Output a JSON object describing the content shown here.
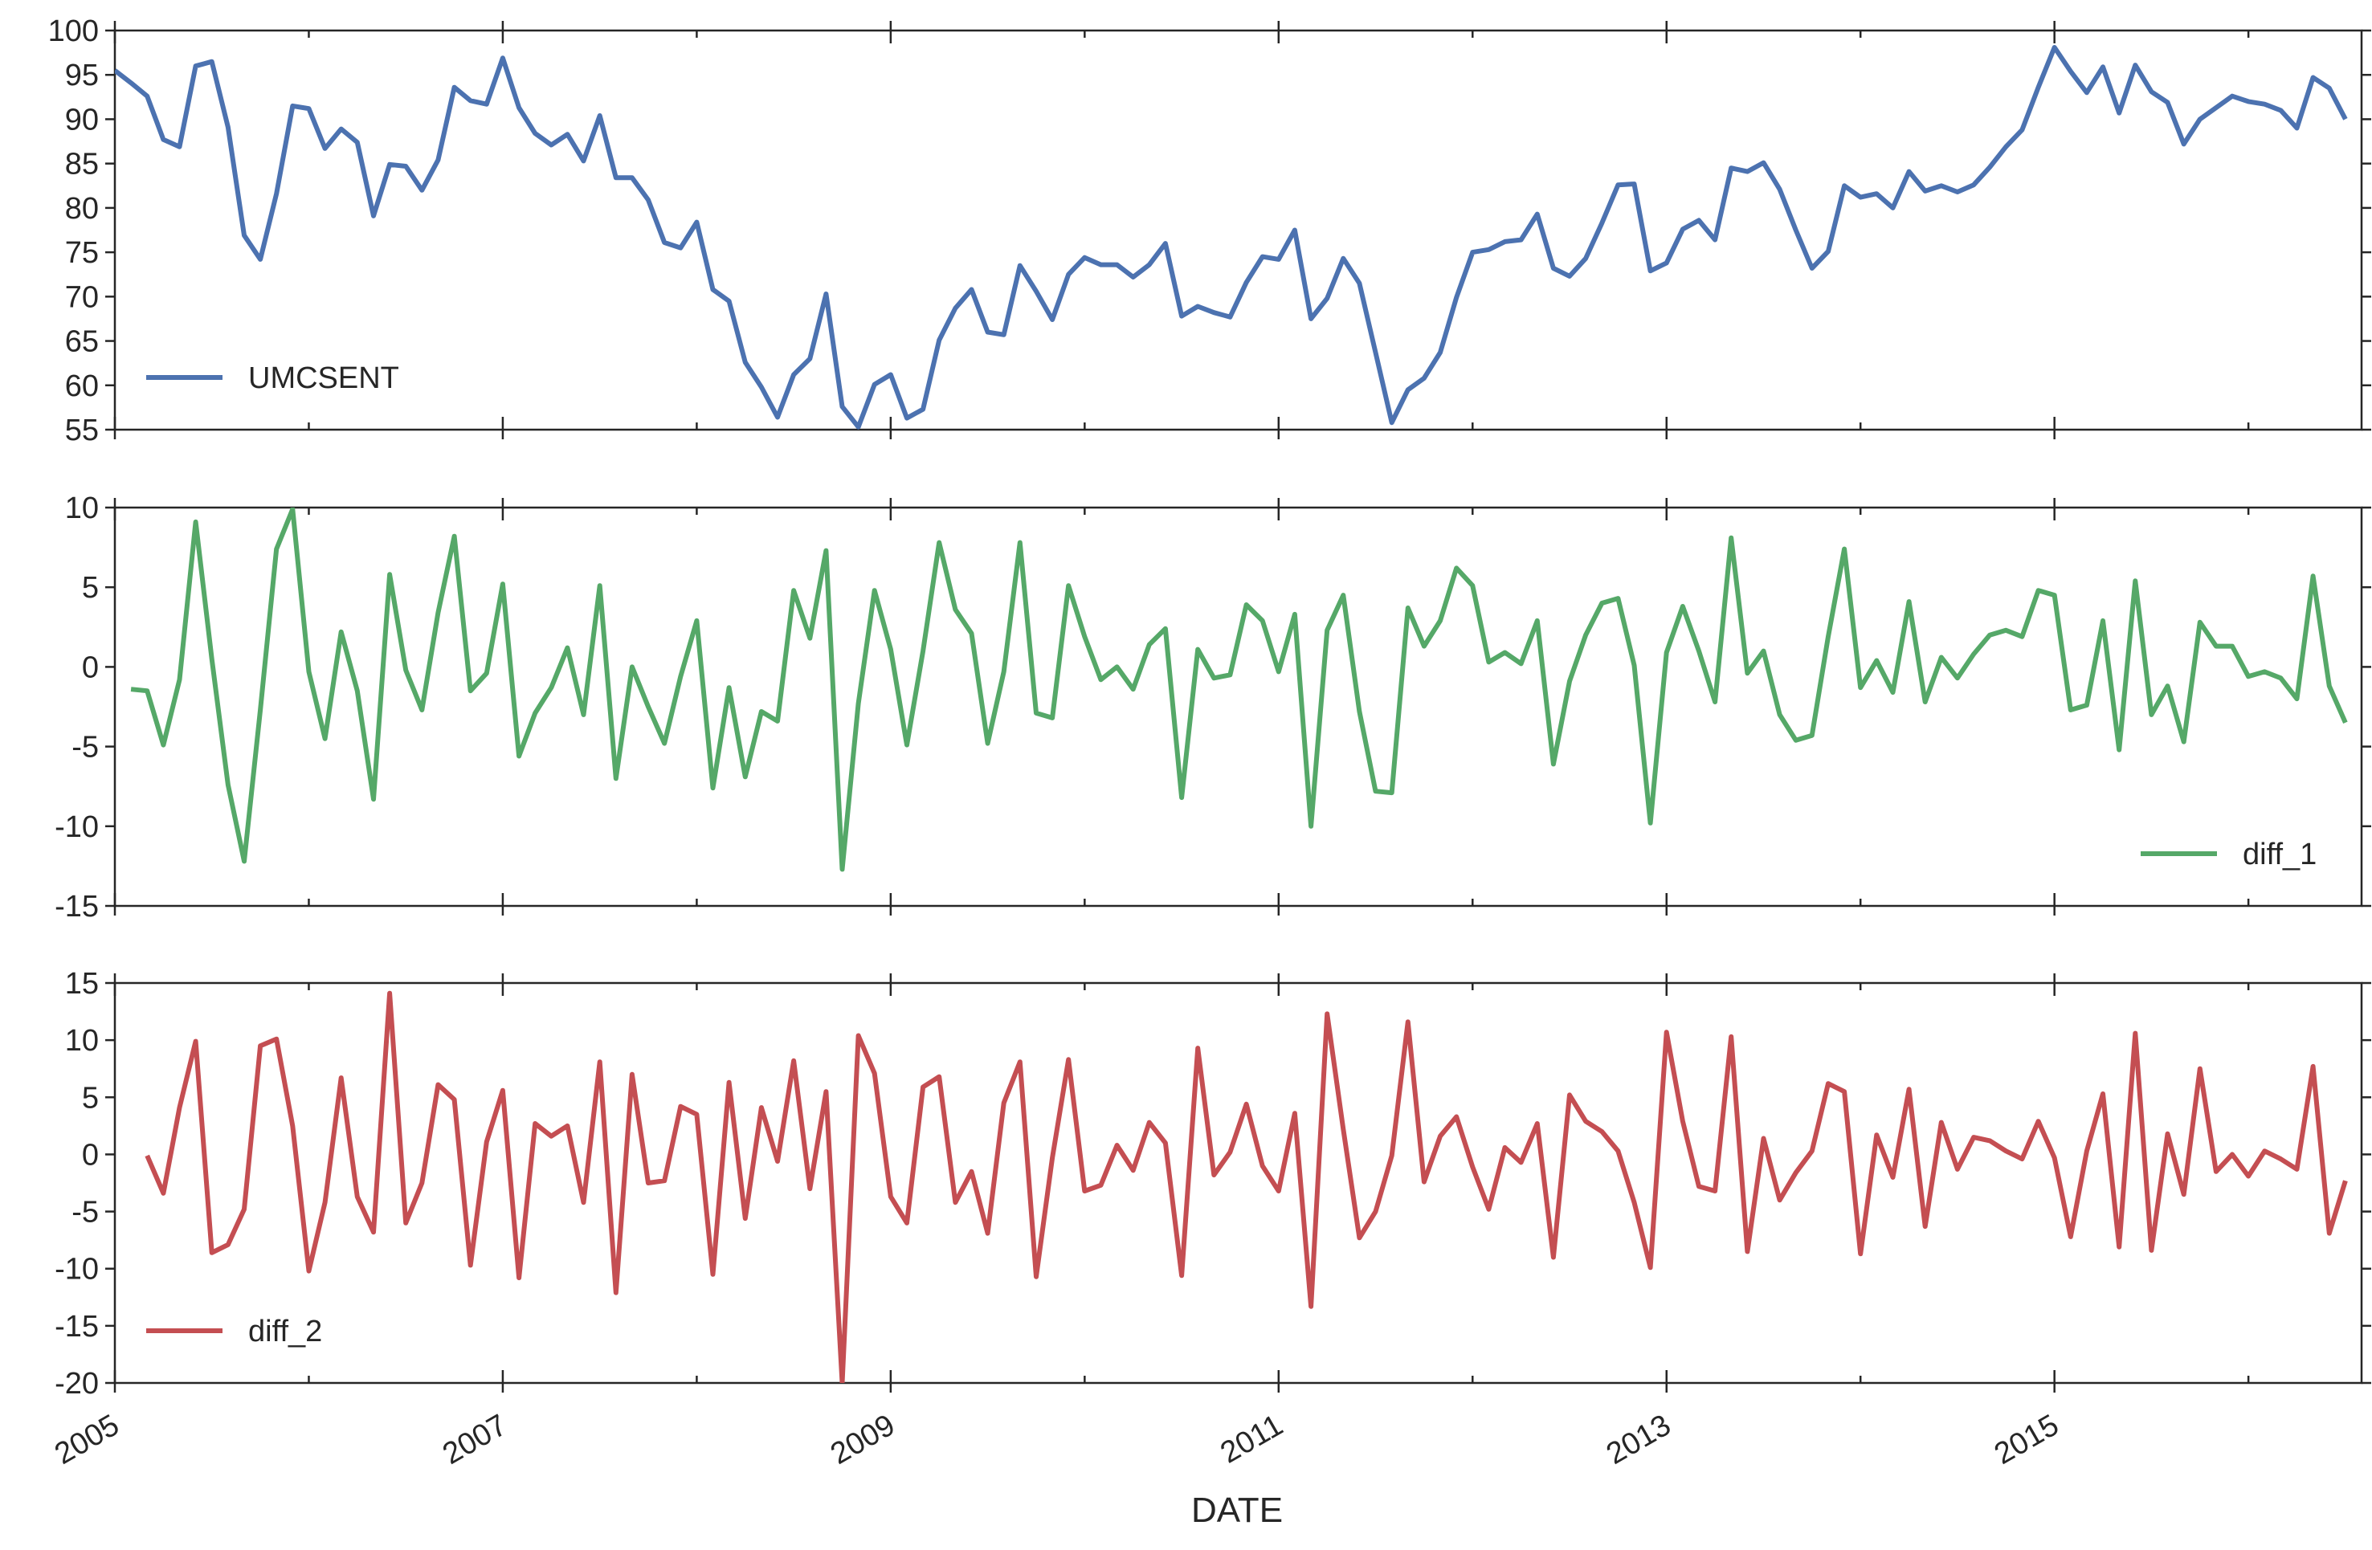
{
  "chart_data": {
    "type": "line",
    "xlabel": "DATE",
    "x_start": "2005-01",
    "x_end": "2016-08",
    "x_ticks": [
      "2005",
      "2007",
      "2009",
      "2011",
      "2013",
      "2015"
    ],
    "grid": false,
    "panels": [
      {
        "name": "UMCSENT",
        "color": "#4c72b0",
        "ylim": [
          55,
          100
        ],
        "yticks": [
          55,
          60,
          65,
          70,
          75,
          80,
          85,
          90,
          95,
          100
        ],
        "legend_loc": "lower-left",
        "values": [
          95.5,
          94.1,
          92.6,
          87.7,
          86.9,
          96.0,
          96.5,
          89.1,
          76.9,
          74.2,
          81.6,
          91.5,
          91.2,
          86.7,
          88.9,
          87.4,
          79.1,
          84.9,
          84.7,
          82.0,
          85.4,
          93.6,
          92.1,
          91.7,
          96.9,
          91.3,
          88.4,
          87.1,
          88.3,
          85.3,
          90.4,
          83.4,
          83.4,
          80.9,
          76.1,
          75.5,
          78.4,
          70.8,
          69.5,
          62.6,
          59.8,
          56.4,
          61.2,
          63.0,
          70.3,
          57.6,
          55.3,
          60.1,
          61.2,
          56.3,
          57.3,
          65.1,
          68.7,
          70.8,
          66.0,
          65.7,
          73.5,
          70.6,
          67.4,
          72.5,
          74.4,
          73.6,
          73.6,
          72.2,
          73.6,
          76.0,
          67.8,
          68.9,
          68.2,
          67.7,
          71.6,
          74.5,
          74.2,
          77.5,
          67.5,
          69.8,
          74.3,
          71.5,
          63.7,
          55.8,
          59.5,
          60.8,
          63.7,
          69.9,
          75.0,
          75.3,
          76.2,
          76.4,
          79.3,
          73.2,
          72.3,
          74.3,
          78.3,
          82.6,
          82.7,
          72.9,
          73.8,
          77.6,
          78.6,
          76.4,
          84.5,
          84.1,
          85.1,
          82.1,
          77.5,
          73.2,
          75.1,
          82.5,
          81.2,
          81.6,
          80.0,
          84.1,
          81.9,
          82.5,
          81.8,
          82.6,
          84.6,
          86.9,
          88.8,
          93.6,
          98.1,
          95.4,
          93.0,
          95.9,
          90.7,
          96.1,
          93.1,
          91.9,
          87.2,
          90.0,
          91.3,
          92.6,
          92.0,
          91.7,
          91.0,
          89.0,
          94.7,
          93.5,
          90.0
        ]
      },
      {
        "name": "diff_1",
        "color": "#55a868",
        "ylim": [
          -15,
          10
        ],
        "yticks": [
          -15,
          -10,
          -5,
          0,
          5,
          10
        ],
        "legend_loc": "lower-right",
        "values": [
          null,
          -1.4,
          -1.5,
          -4.9,
          -0.8,
          9.1,
          0.5,
          -7.4,
          -12.2,
          -2.7,
          7.4,
          9.9,
          -0.3,
          -4.5,
          2.2,
          -1.5,
          -8.3,
          5.8,
          -0.2,
          -2.7,
          3.4,
          8.2,
          -1.5,
          -0.4,
          5.2,
          -5.6,
          -2.9,
          -1.3,
          1.2,
          -3.0,
          5.1,
          -7.0,
          0.0,
          -2.5,
          -4.8,
          -0.6,
          2.9,
          -7.6,
          -1.3,
          -6.9,
          -2.8,
          -3.4,
          4.8,
          1.8,
          7.3,
          -12.7,
          -2.3,
          4.8,
          1.1,
          -4.9,
          1.0,
          7.8,
          3.6,
          2.1,
          -4.8,
          -0.3,
          7.8,
          -2.9,
          -3.2,
          5.1,
          1.9,
          -0.8,
          0.0,
          -1.4,
          1.4,
          2.4,
          -8.2,
          1.1,
          -0.7,
          -0.5,
          3.9,
          2.9,
          -0.3,
          3.3,
          -10.0,
          2.3,
          4.5,
          -2.8,
          -7.8,
          -7.9,
          3.7,
          1.3,
          2.9,
          6.2,
          5.1,
          0.3,
          0.9,
          0.2,
          2.9,
          -6.1,
          -0.9,
          2.0,
          4.0,
          4.3,
          0.1,
          -9.8,
          0.9,
          3.8,
          1.0,
          -2.2,
          8.1,
          -0.4,
          1.0,
          -3.0,
          -4.6,
          -4.3,
          1.9,
          7.4,
          -1.3,
          0.4,
          -1.6,
          4.1,
          -2.2,
          0.6,
          -0.7,
          0.8,
          2.0,
          2.3,
          1.9,
          4.8,
          4.5,
          -2.7,
          -2.4,
          2.9,
          -5.2,
          5.4,
          -3.0,
          -1.2,
          -4.7,
          2.8,
          1.3,
          1.3,
          -0.6,
          -0.3,
          -0.7,
          -2.0,
          5.7,
          -1.2,
          -3.5
        ]
      },
      {
        "name": "diff_2",
        "color": "#c44e52",
        "ylim": [
          -20,
          15
        ],
        "yticks": [
          -20,
          -15,
          -10,
          -5,
          0,
          5,
          10,
          15
        ],
        "legend_loc": "lower-left",
        "values": [
          null,
          null,
          -0.1,
          -3.4,
          4.1,
          9.9,
          -8.6,
          -7.9,
          -4.8,
          9.5,
          10.1,
          2.5,
          -10.2,
          -4.2,
          6.7,
          -3.7,
          -6.8,
          14.1,
          -6.0,
          -2.5,
          6.1,
          4.8,
          -9.7,
          1.1,
          5.6,
          -10.8,
          2.7,
          1.6,
          2.5,
          -4.2,
          8.1,
          -12.1,
          7.0,
          -2.5,
          -2.3,
          4.2,
          3.5,
          -10.5,
          6.3,
          -5.6,
          4.1,
          -0.6,
          8.2,
          -3.0,
          5.5,
          -20.0,
          10.4,
          7.1,
          -3.7,
          -6.0,
          5.9,
          6.8,
          -4.2,
          -1.5,
          -6.9,
          4.5,
          8.1,
          -10.7,
          -0.3,
          8.3,
          -3.2,
          -2.7,
          0.8,
          -1.4,
          2.8,
          1.0,
          -10.6,
          9.3,
          -1.8,
          0.2,
          4.4,
          -1.0,
          -3.2,
          3.6,
          -13.3,
          12.3,
          2.2,
          -7.3,
          -5.0,
          -0.1,
          11.6,
          -2.4,
          1.6,
          3.3,
          -1.1,
          -4.8,
          0.6,
          -0.7,
          2.7,
          -9.0,
          5.2,
          2.9,
          2.0,
          0.3,
          -4.2,
          -9.9,
          10.7,
          2.9,
          -2.8,
          -3.2,
          10.3,
          -8.5,
          1.4,
          -4.0,
          -1.6,
          0.3,
          6.2,
          5.5,
          -8.7,
          1.7,
          -2.0,
          5.7,
          -6.3,
          2.8,
          -1.3,
          1.5,
          1.2,
          0.3,
          -0.4,
          2.9,
          -0.3,
          -7.2,
          0.3,
          5.3,
          -8.1,
          10.6,
          -8.4,
          1.8,
          -3.5,
          7.5,
          -1.5,
          0.0,
          -1.9,
          0.3,
          -0.4,
          -1.3,
          7.7,
          -6.9,
          -2.3
        ]
      }
    ]
  }
}
